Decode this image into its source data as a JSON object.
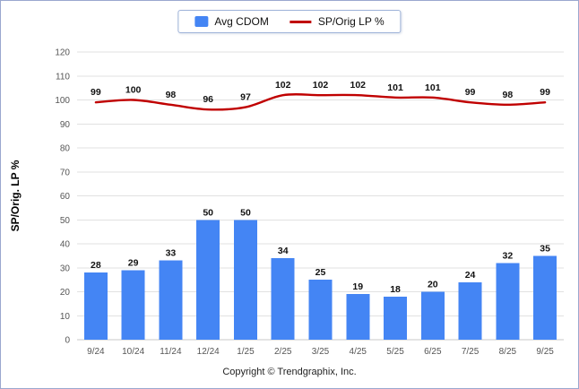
{
  "legend": {
    "items": [
      {
        "label": "Avg CDOM",
        "swatch": "bar",
        "color": "#4485f4"
      },
      {
        "label": "SP/Orig LP %",
        "swatch": "line",
        "color": "#c00000"
      }
    ]
  },
  "footer": {
    "copyright": "Copyright © Trendgraphix, Inc."
  },
  "chart_data": {
    "type": "bar",
    "subtype": "bar+line combo",
    "categories": [
      "9/24",
      "10/24",
      "11/24",
      "12/24",
      "1/25",
      "2/25",
      "3/25",
      "4/25",
      "5/25",
      "6/25",
      "7/25",
      "8/25",
      "9/25"
    ],
    "series": [
      {
        "name": "Avg CDOM",
        "type": "bar",
        "color": "#4485f4",
        "values": [
          28,
          29,
          33,
          50,
          50,
          34,
          25,
          19,
          18,
          20,
          24,
          32,
          35
        ]
      },
      {
        "name": "SP/Orig LP %",
        "type": "line",
        "color": "#c00000",
        "values": [
          99,
          100,
          98,
          96,
          97,
          102,
          102,
          102,
          101,
          101,
          99,
          98,
          99
        ]
      }
    ],
    "xlabel": "",
    "ylabel": "SP/Orig. LP %",
    "ylim": [
      0,
      120
    ],
    "ytick_step": 10,
    "grid": true,
    "legend_position": "top-center",
    "value_labels": true
  }
}
